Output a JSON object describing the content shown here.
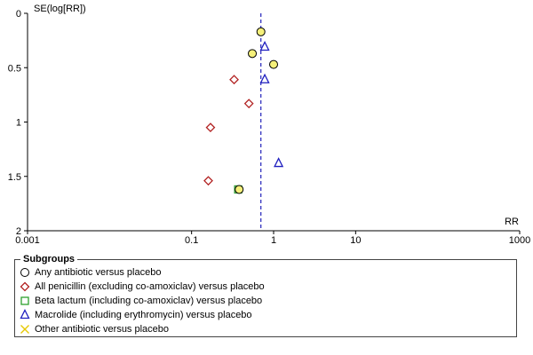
{
  "chart_data": {
    "type": "scatter",
    "subtype": "funnel-plot",
    "xlabel": "RR",
    "ylabel": "SE(log[RR])",
    "xscale": "log",
    "xlim": [
      0.001,
      1000
    ],
    "ylim": [
      2,
      0
    ],
    "xticks": [
      0.001,
      0.1,
      1,
      10,
      1000
    ],
    "xtick_labels": [
      "0.001",
      "0.1",
      "1",
      "10",
      "1000"
    ],
    "yticks": [
      0,
      0.5,
      1,
      1.5,
      2
    ],
    "ytick_labels": [
      "0",
      "0.5",
      "1",
      "1.5",
      "2"
    ],
    "pooled_rr": 0.7,
    "grid": false,
    "legend_position": "bottom",
    "legend_title": "Subgroups",
    "series": [
      {
        "name": "Any antibiotic versus placebo",
        "marker": "circle",
        "color": "#000000",
        "fill": "#f5f07a",
        "points": [
          {
            "x": 0.7,
            "y": 0.17
          },
          {
            "x": 0.55,
            "y": 0.37
          },
          {
            "x": 1.0,
            "y": 0.47
          },
          {
            "x": 0.38,
            "y": 1.62
          }
        ]
      },
      {
        "name": "All penicillin (excluding co-amoxiclav) versus placebo",
        "marker": "diamond",
        "color": "#b22222",
        "points": [
          {
            "x": 0.33,
            "y": 0.61
          },
          {
            "x": 0.5,
            "y": 0.83
          },
          {
            "x": 0.17,
            "y": 1.05
          },
          {
            "x": 0.16,
            "y": 1.54
          }
        ]
      },
      {
        "name": "Beta lactum (including co-amoxiclav) versus placebo",
        "marker": "square",
        "color": "#2ea02e",
        "points": [
          {
            "x": 0.37,
            "y": 1.62
          }
        ]
      },
      {
        "name": "Macrolide (including erythromycin) versus placebo",
        "marker": "triangle",
        "color": "#1f1fbf",
        "points": [
          {
            "x": 0.78,
            "y": 0.31
          },
          {
            "x": 0.78,
            "y": 0.61
          },
          {
            "x": 1.15,
            "y": 1.38
          }
        ]
      },
      {
        "name": "Other antibiotic versus placebo",
        "marker": "cross",
        "color": "#e6c800",
        "points": []
      }
    ]
  }
}
